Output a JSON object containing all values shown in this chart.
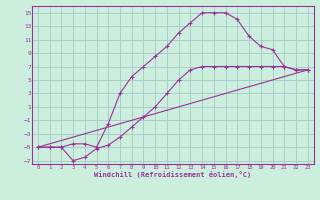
{
  "xlabel": "Windchill (Refroidissement éolien,°C)",
  "bg_color": "#cceedd",
  "grid_color": "#aacccc",
  "line_color": "#993399",
  "xlim": [
    -0.5,
    23.5
  ],
  "ylim": [
    -7.5,
    16
  ],
  "xticks": [
    0,
    1,
    2,
    3,
    4,
    5,
    6,
    7,
    8,
    9,
    10,
    11,
    12,
    13,
    14,
    15,
    16,
    17,
    18,
    19,
    20,
    21,
    22,
    23
  ],
  "yticks": [
    -7,
    -5,
    -3,
    -1,
    1,
    3,
    5,
    7,
    9,
    11,
    13,
    15
  ],
  "curve1_x": [
    0,
    1,
    2,
    3,
    4,
    5,
    6,
    7,
    8,
    9,
    10,
    11,
    12,
    13,
    14,
    15,
    16,
    17,
    18,
    19,
    20,
    21,
    22,
    23
  ],
  "curve1_y": [
    -5,
    -5,
    -5,
    -7,
    -6.5,
    -5.2,
    -4.7,
    -3.5,
    -2,
    -0.5,
    1,
    3,
    5,
    6.5,
    7,
    7,
    7,
    7,
    7,
    7,
    7,
    7,
    6.5,
    6.5
  ],
  "curve2_x": [
    0,
    1,
    2,
    3,
    4,
    5,
    6,
    7,
    8,
    9,
    10,
    11,
    12,
    13,
    14,
    15,
    16,
    17,
    18,
    19,
    20,
    21,
    22,
    23
  ],
  "curve2_y": [
    -5,
    -5,
    -5,
    -4.5,
    -4.5,
    -5,
    -1.5,
    3,
    5.5,
    7,
    8.5,
    10,
    12,
    13.5,
    15,
    15,
    15,
    14,
    11.5,
    10,
    9.5,
    7,
    6.5,
    6.5
  ],
  "curve3_x": [
    0,
    23
  ],
  "curve3_y": [
    -5,
    6.5
  ]
}
